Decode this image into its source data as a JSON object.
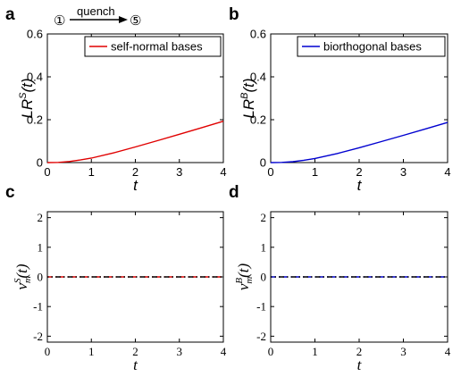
{
  "annotation": {
    "from": "①",
    "label": "quench",
    "to": "⑤"
  },
  "chart_data": [
    {
      "type": "line",
      "panel": "a",
      "ylabel_main": "LR",
      "ylabel_sup": "S",
      "ylabel_tail": "(t)",
      "xlabel": "t",
      "xlim": [
        0,
        4
      ],
      "ylim": [
        0,
        0.6
      ],
      "x_ticks": [
        "0",
        "1",
        "2",
        "3",
        "4"
      ],
      "y_ticks": [
        "0",
        "0.2",
        "0.4",
        "0.6"
      ],
      "legend": "top-right",
      "series": [
        {
          "name": "self-normal bases",
          "color": "#e00000",
          "x": [
            0,
            0.25,
            0.5,
            0.75,
            1,
            1.5,
            2,
            2.5,
            3,
            3.5,
            4
          ],
          "y": [
            0,
            0.001,
            0.005,
            0.012,
            0.021,
            0.045,
            0.073,
            0.102,
            0.132,
            0.162,
            0.193
          ]
        }
      ]
    },
    {
      "type": "line",
      "panel": "b",
      "ylabel_main": "LR",
      "ylabel_sup": "B",
      "ylabel_tail": "(t)",
      "xlabel": "t",
      "xlim": [
        0,
        4
      ],
      "ylim": [
        0,
        0.6
      ],
      "x_ticks": [
        "0",
        "1",
        "2",
        "3",
        "4"
      ],
      "y_ticks": [
        "0",
        "0.2",
        "0.4",
        "0.6"
      ],
      "legend": "top-right",
      "series": [
        {
          "name": "biorthogonal bases",
          "color": "#0000d0",
          "x": [
            0,
            0.25,
            0.5,
            0.75,
            1,
            1.5,
            2,
            2.5,
            3,
            3.5,
            4
          ],
          "y": [
            0,
            0.001,
            0.004,
            0.011,
            0.019,
            0.042,
            0.069,
            0.098,
            0.127,
            0.157,
            0.187
          ]
        }
      ]
    },
    {
      "type": "line",
      "panel": "c",
      "ylabel_main": "ν",
      "ylabel_sup": "S",
      "ylabel_sub": "m",
      "ylabel_tail": "(t)",
      "xlabel": "t",
      "xlim": [
        0,
        4
      ],
      "ylim": [
        -2.2,
        2.2
      ],
      "x_ticks": [
        "0",
        "1",
        "2",
        "3",
        "4"
      ],
      "y_ticks": [
        "-2",
        "-1",
        "0",
        "1",
        "2"
      ],
      "series": [
        {
          "color": "#e00000",
          "dash": "dashdot",
          "x": [
            0,
            4
          ],
          "y": [
            0,
            0
          ]
        },
        {
          "color": "#000000",
          "dash": "dashdot",
          "x": [
            0,
            4
          ],
          "y": [
            0,
            0
          ]
        }
      ]
    },
    {
      "type": "line",
      "panel": "d",
      "ylabel_main": "ν",
      "ylabel_sup": "B",
      "ylabel_sub": "m",
      "ylabel_tail": "(t)",
      "xlabel": "t",
      "xlim": [
        0,
        4
      ],
      "ylim": [
        -2.2,
        2.2
      ],
      "x_ticks": [
        "0",
        "1",
        "2",
        "3",
        "4"
      ],
      "y_ticks": [
        "-2",
        "-1",
        "0",
        "1",
        "2"
      ],
      "series": [
        {
          "color": "#0000d0",
          "dash": "dashdot",
          "x": [
            0,
            4
          ],
          "y": [
            0,
            0
          ]
        },
        {
          "color": "#000000",
          "dash": "dashdot",
          "x": [
            0,
            4
          ],
          "y": [
            0,
            0
          ]
        }
      ]
    }
  ]
}
